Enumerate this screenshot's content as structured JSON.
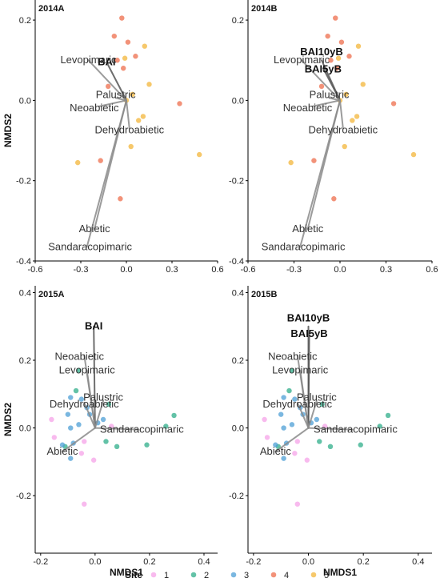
{
  "chart_data": [
    {
      "type": "scatter",
      "title": "2014A",
      "xlabel": "",
      "ylabel": "NMDS2",
      "xlim": [
        -0.6,
        0.6
      ],
      "ylim": [
        -0.4,
        0.25
      ],
      "xticks": [
        "-0.6",
        "-0.3",
        "0.0",
        "0.3",
        "0.6"
      ],
      "yticks": [
        "0.2",
        "0.0",
        "-0.2",
        "-0.4"
      ],
      "xtick_values": [
        -0.6,
        -0.3,
        0.0,
        0.3,
        0.6
      ],
      "ytick_values": [
        0.2,
        0.0,
        -0.2,
        -0.4
      ],
      "points": [
        {
          "site": "4",
          "x": -0.03,
          "y": 0.205
        },
        {
          "site": "4",
          "x": -0.08,
          "y": 0.16
        },
        {
          "site": "4",
          "x": 0.01,
          "y": 0.145
        },
        {
          "site": "4",
          "x": 0.06,
          "y": 0.11
        },
        {
          "site": "4",
          "x": -0.06,
          "y": 0.1
        },
        {
          "site": "4",
          "x": -0.12,
          "y": 0.035
        },
        {
          "site": "4",
          "x": -0.02,
          "y": 0.08
        },
        {
          "site": "4",
          "x": 0.35,
          "y": -0.008
        },
        {
          "site": "4",
          "x": -0.17,
          "y": -0.15
        },
        {
          "site": "4",
          "x": -0.04,
          "y": -0.245
        },
        {
          "site": "5",
          "x": 0.12,
          "y": 0.135
        },
        {
          "site": "5",
          "x": -0.01,
          "y": 0.105
        },
        {
          "site": "5",
          "x": 0.04,
          "y": 0.015
        },
        {
          "site": "5",
          "x": 0.15,
          "y": 0.04
        },
        {
          "site": "5",
          "x": 0.08,
          "y": -0.05
        },
        {
          "site": "5",
          "x": 0.11,
          "y": -0.04
        },
        {
          "site": "5",
          "x": 0.03,
          "y": -0.115
        },
        {
          "site": "5",
          "x": 0.48,
          "y": -0.135
        },
        {
          "site": "5",
          "x": -0.32,
          "y": -0.155
        },
        {
          "site": "5",
          "x": 0.0,
          "y": 0.0
        }
      ],
      "vectors": [
        {
          "name": "BAI",
          "x": -0.13,
          "y": 0.095,
          "bold": true
        },
        {
          "name": "Levopimaric",
          "x": -0.25,
          "y": 0.1
        },
        {
          "name": "Palustric",
          "x": -0.07,
          "y": 0.006
        },
        {
          "name": "Neoabietic",
          "x": -0.18,
          "y": -0.015
        },
        {
          "name": "Dehydroabietic",
          "x": 0.02,
          "y": -0.07
        },
        {
          "name": "Abietic",
          "x": -0.21,
          "y": -0.32
        },
        {
          "name": "Sandaracopimaric",
          "x": -0.26,
          "y": -0.365
        }
      ]
    },
    {
      "type": "scatter",
      "title": "2014B",
      "xlabel": "",
      "ylabel": "",
      "xlim": [
        -0.6,
        0.6
      ],
      "ylim": [
        -0.4,
        0.25
      ],
      "xticks": [
        "-0.6",
        "-0.3",
        "0.0",
        "0.3",
        "0.6"
      ],
      "yticks": [
        "0.2",
        "0.0",
        "-0.2",
        "-0.4"
      ],
      "xtick_values": [
        -0.6,
        -0.3,
        0.0,
        0.3,
        0.6
      ],
      "ytick_values": [
        0.2,
        0.0,
        -0.2,
        -0.4
      ],
      "points": [
        {
          "site": "4",
          "x": -0.03,
          "y": 0.205
        },
        {
          "site": "4",
          "x": -0.08,
          "y": 0.16
        },
        {
          "site": "4",
          "x": 0.01,
          "y": 0.145
        },
        {
          "site": "4",
          "x": 0.06,
          "y": 0.11
        },
        {
          "site": "4",
          "x": -0.06,
          "y": 0.1
        },
        {
          "site": "4",
          "x": -0.12,
          "y": 0.035
        },
        {
          "site": "4",
          "x": -0.02,
          "y": 0.08
        },
        {
          "site": "4",
          "x": 0.35,
          "y": -0.008
        },
        {
          "site": "4",
          "x": -0.17,
          "y": -0.15
        },
        {
          "site": "4",
          "x": -0.04,
          "y": -0.245
        },
        {
          "site": "5",
          "x": 0.12,
          "y": 0.135
        },
        {
          "site": "5",
          "x": -0.01,
          "y": 0.105
        },
        {
          "site": "5",
          "x": 0.04,
          "y": 0.015
        },
        {
          "site": "5",
          "x": 0.15,
          "y": 0.04
        },
        {
          "site": "5",
          "x": 0.08,
          "y": -0.05
        },
        {
          "site": "5",
          "x": 0.11,
          "y": -0.04
        },
        {
          "site": "5",
          "x": 0.03,
          "y": -0.115
        },
        {
          "site": "5",
          "x": 0.48,
          "y": -0.135
        },
        {
          "site": "5",
          "x": -0.32,
          "y": -0.155
        },
        {
          "site": "5",
          "x": 0.0,
          "y": 0.0
        }
      ],
      "vectors": [
        {
          "name": "BAI10yB",
          "x": -0.12,
          "y": 0.1,
          "bold": true
        },
        {
          "name": "BAI5yB",
          "x": -0.11,
          "y": 0.08,
          "bold": true
        },
        {
          "name": "Levopimaric",
          "x": -0.25,
          "y": 0.1
        },
        {
          "name": "Palustric",
          "x": -0.07,
          "y": 0.006
        },
        {
          "name": "Neoabietic",
          "x": -0.18,
          "y": -0.015
        },
        {
          "name": "Dehydroabietic",
          "x": 0.02,
          "y": -0.07
        },
        {
          "name": "Abietic",
          "x": -0.21,
          "y": -0.32
        },
        {
          "name": "Sandaracopimaric",
          "x": -0.26,
          "y": -0.365
        }
      ]
    },
    {
      "type": "scatter",
      "title": "2015A",
      "xlabel": "NMDS1",
      "ylabel": "NMDS2",
      "xlim": [
        -0.22,
        0.45
      ],
      "ylim": [
        -0.37,
        0.42
      ],
      "xticks": [
        "-0.2",
        "0.0",
        "0.2",
        "0.4"
      ],
      "yticks": [
        "0.4",
        "0.2",
        "0.0",
        "-0.2"
      ],
      "xtick_values": [
        -0.2,
        0.0,
        0.2,
        0.4
      ],
      "ytick_values": [
        0.4,
        0.2,
        0.0,
        -0.2
      ],
      "points": [
        {
          "site": "1",
          "x": -0.16,
          "y": 0.025
        },
        {
          "site": "1",
          "x": -0.15,
          "y": -0.028
        },
        {
          "site": "1",
          "x": -0.04,
          "y": -0.04
        },
        {
          "site": "1",
          "x": -0.005,
          "y": -0.095
        },
        {
          "site": "1",
          "x": -0.05,
          "y": -0.075
        },
        {
          "site": "1",
          "x": 0.06,
          "y": 0.005
        },
        {
          "site": "1",
          "x": -0.04,
          "y": -0.225
        },
        {
          "site": "2",
          "x": 0.29,
          "y": 0.037
        },
        {
          "site": "2",
          "x": 0.26,
          "y": 0.005
        },
        {
          "site": "2",
          "x": 0.19,
          "y": -0.05
        },
        {
          "site": "2",
          "x": 0.08,
          "y": -0.055
        },
        {
          "site": "2",
          "x": 0.04,
          "y": -0.04
        },
        {
          "site": "2",
          "x": 0.05,
          "y": 0.07
        },
        {
          "site": "2",
          "x": -0.06,
          "y": 0.17
        },
        {
          "site": "2",
          "x": -0.11,
          "y": -0.055
        },
        {
          "site": "2",
          "x": -0.07,
          "y": 0.11
        },
        {
          "site": "3",
          "x": -0.09,
          "y": 0.09
        },
        {
          "site": "3",
          "x": -0.1,
          "y": 0.04
        },
        {
          "site": "3",
          "x": -0.05,
          "y": 0.085
        },
        {
          "site": "3",
          "x": -0.03,
          "y": 0.06
        },
        {
          "site": "3",
          "x": -0.06,
          "y": 0.01
        },
        {
          "site": "3",
          "x": -0.09,
          "y": -0.09
        },
        {
          "site": "3",
          "x": -0.12,
          "y": -0.05
        },
        {
          "site": "3",
          "x": -0.08,
          "y": -0.045
        },
        {
          "site": "3",
          "x": 0.01,
          "y": 0.015
        },
        {
          "site": "3",
          "x": -0.09,
          "y": 0.0
        },
        {
          "site": "3",
          "x": 0.03,
          "y": 0.025
        },
        {
          "site": "3",
          "x": -0.02,
          "y": 0.04
        }
      ],
      "vectors": [
        {
          "name": "BAI",
          "x": -0.005,
          "y": 0.3,
          "bold": true
        },
        {
          "name": "Neoabietic",
          "x": -0.04,
          "y": 0.215
        },
        {
          "name": "Levopimaric",
          "x": -0.03,
          "y": 0.17
        },
        {
          "name": "Dehydroabietic",
          "x": -0.04,
          "y": 0.075
        },
        {
          "name": "Palustric",
          "x": 0.03,
          "y": 0.08
        },
        {
          "name": "Sandaracopimaric",
          "x": 0.16,
          "y": -0.005
        },
        {
          "name": "Abietic",
          "x": -0.12,
          "y": -0.07
        }
      ]
    },
    {
      "type": "scatter",
      "title": "2015B",
      "xlabel": "NMDS1",
      "ylabel": "",
      "xlim": [
        -0.22,
        0.45
      ],
      "ylim": [
        -0.37,
        0.42
      ],
      "xticks": [
        "-0.2",
        "0.0",
        "0.2",
        "0.4"
      ],
      "yticks": [
        "0.4",
        "0.2",
        "0.0",
        "-0.2"
      ],
      "xtick_values": [
        -0.2,
        0.0,
        0.2,
        0.4
      ],
      "ytick_values": [
        0.4,
        0.2,
        0.0,
        -0.2
      ],
      "points": [
        {
          "site": "1",
          "x": -0.16,
          "y": 0.025
        },
        {
          "site": "1",
          "x": -0.15,
          "y": -0.028
        },
        {
          "site": "1",
          "x": -0.04,
          "y": -0.04
        },
        {
          "site": "1",
          "x": -0.005,
          "y": -0.095
        },
        {
          "site": "1",
          "x": -0.05,
          "y": -0.075
        },
        {
          "site": "1",
          "x": 0.06,
          "y": 0.005
        },
        {
          "site": "1",
          "x": -0.04,
          "y": -0.225
        },
        {
          "site": "2",
          "x": 0.29,
          "y": 0.037
        },
        {
          "site": "2",
          "x": 0.26,
          "y": 0.005
        },
        {
          "site": "2",
          "x": 0.19,
          "y": -0.05
        },
        {
          "site": "2",
          "x": 0.08,
          "y": -0.055
        },
        {
          "site": "2",
          "x": 0.04,
          "y": -0.04
        },
        {
          "site": "2",
          "x": 0.05,
          "y": 0.07
        },
        {
          "site": "2",
          "x": -0.06,
          "y": 0.17
        },
        {
          "site": "2",
          "x": -0.11,
          "y": -0.055
        },
        {
          "site": "2",
          "x": -0.07,
          "y": 0.11
        },
        {
          "site": "3",
          "x": -0.09,
          "y": 0.09
        },
        {
          "site": "3",
          "x": -0.1,
          "y": 0.04
        },
        {
          "site": "3",
          "x": -0.05,
          "y": 0.085
        },
        {
          "site": "3",
          "x": -0.03,
          "y": 0.06
        },
        {
          "site": "3",
          "x": -0.06,
          "y": 0.01
        },
        {
          "site": "3",
          "x": -0.09,
          "y": -0.09
        },
        {
          "site": "3",
          "x": -0.12,
          "y": -0.05
        },
        {
          "site": "3",
          "x": -0.08,
          "y": -0.045
        },
        {
          "site": "3",
          "x": 0.01,
          "y": 0.015
        },
        {
          "site": "3",
          "x": -0.09,
          "y": 0.0
        },
        {
          "site": "3",
          "x": 0.03,
          "y": 0.025
        },
        {
          "site": "3",
          "x": -0.02,
          "y": 0.04
        }
      ],
      "vectors": [
        {
          "name": "BAI10yB",
          "x": 0.0,
          "y": 0.3,
          "bold": true
        },
        {
          "name": "BAI5yB",
          "x": 0.003,
          "y": 0.28,
          "bold": true
        },
        {
          "name": "Neoabietic",
          "x": -0.04,
          "y": 0.215
        },
        {
          "name": "Levopimaric",
          "x": -0.03,
          "y": 0.17
        },
        {
          "name": "Dehydroabietic",
          "x": -0.04,
          "y": 0.075
        },
        {
          "name": "Palustric",
          "x": 0.03,
          "y": 0.08
        },
        {
          "name": "Sandaracopimaric",
          "x": 0.16,
          "y": -0.005
        },
        {
          "name": "Abietic",
          "x": -0.12,
          "y": -0.07
        }
      ]
    }
  ],
  "legend": {
    "title": "Site",
    "placement": "bottom",
    "items": [
      {
        "label": "1",
        "color": "#f5a3e8"
      },
      {
        "label": "2",
        "color": "#2fae8a"
      },
      {
        "label": "3",
        "color": "#4e9fd6"
      },
      {
        "label": "4",
        "color": "#ee6e4c"
      },
      {
        "label": "5",
        "color": "#f3b63a"
      }
    ]
  },
  "colors": {
    "vector": "#8a8a8a",
    "axis": "#000000"
  }
}
